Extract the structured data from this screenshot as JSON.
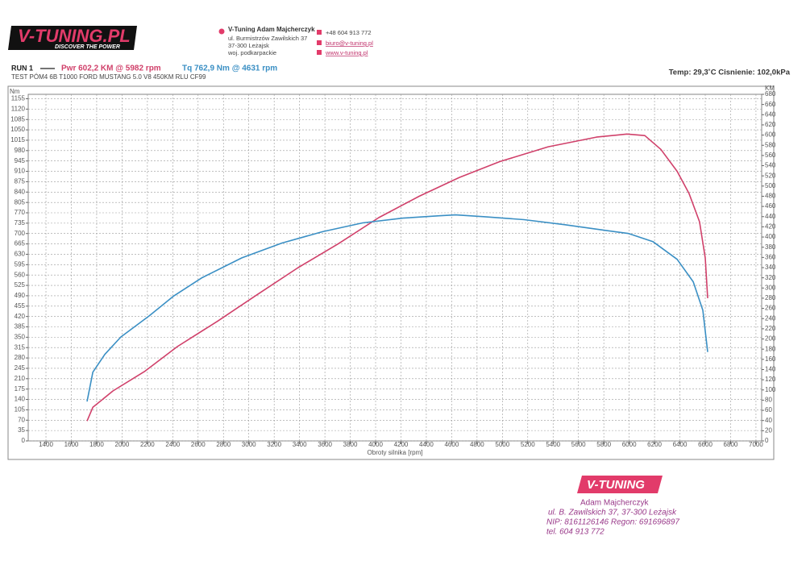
{
  "header": {
    "logo": "V-TUNING.PL",
    "slogan": "DISCOVER THE POWER",
    "address": [
      "V-Tuning Adam Majcherczyk",
      "ul. Burmistrzów Zawilskich 37",
      "37-300 Leżajsk",
      "woj. podkarpackie"
    ],
    "contact": [
      "+48 604 913 772",
      "biuro@v-tuning.pl",
      "www.v-tuning.pl"
    ]
  },
  "chart_data": {
    "type": "line",
    "run": "RUN 1",
    "subtitle": "TEST PÓM4 6B T1000 FORD MUSTANG 5.0 V8 450KM RLU CF99",
    "conditions": "Temp: 29,3˚C  Cisnienie: 102,0kPa",
    "y_label": "Nm",
    "y2_label": "KM",
    "x_label": "Obroty silnika [rpm]",
    "xlim": [
      1260,
      7045
    ],
    "xticks": [
      1400,
      1600,
      1800,
      2000,
      2200,
      2400,
      2600,
      2800,
      3000,
      3200,
      3400,
      3600,
      3800,
      4000,
      4200,
      4400,
      4600,
      4800,
      5000,
      5200,
      5400,
      5600,
      5800,
      6000,
      6200,
      6400,
      6600,
      6800,
      7000
    ],
    "ylim": [
      0,
      1170
    ],
    "yticks": [
      0,
      35,
      70,
      105,
      140,
      175,
      210,
      245,
      280,
      315,
      350,
      385,
      420,
      455,
      490,
      525,
      560,
      595,
      630,
      665,
      700,
      735,
      770,
      805,
      840,
      875,
      910,
      945,
      980,
      1015,
      1050,
      1085,
      1120,
      1155
    ],
    "y2lim": [
      0,
      680
    ],
    "y2ticks": [
      0,
      20,
      40,
      60,
      80,
      100,
      120,
      140,
      160,
      180,
      200,
      220,
      240,
      260,
      280,
      300,
      320,
      340,
      360,
      380,
      400,
      420,
      440,
      460,
      480,
      500,
      520,
      540,
      560,
      580,
      600,
      620,
      640,
      660,
      680
    ],
    "grid": true,
    "series": [
      {
        "name": "Pwr 602,2 KM @ 5982 rpm",
        "color": "#d0406a",
        "axis": "y2",
        "x": [
          1724,
          1770,
          1928,
          2182,
          2436,
          2754,
          3072,
          3389,
          3707,
          4025,
          4343,
          4661,
          4979,
          5361,
          5742,
          5982,
          6123,
          6250,
          6378,
          6473,
          6555,
          6600,
          6619
        ],
        "values": [
          39,
          66,
          98,
          137,
          185,
          235,
          288,
          340,
          387,
          438,
          480,
          517,
          548,
          577,
          596,
          602,
          599,
          572,
          529,
          485,
          430,
          359,
          280
        ]
      },
      {
        "name": "Tq 762,9 Nm @ 4631 rpm",
        "color": "#3a8fc4",
        "axis": "y",
        "x": [
          1724,
          1770,
          1864,
          1991,
          2214,
          2404,
          2627,
          2945,
          3262,
          3580,
          3898,
          4216,
          4502,
          4631,
          4852,
          5170,
          5488,
          5806,
          5996,
          6187,
          6378,
          6505,
          6581,
          6619
        ],
        "values": [
          133,
          232,
          292,
          351,
          422,
          488,
          550,
          618,
          668,
          706,
          736,
          752,
          760,
          763,
          757,
          747,
          730,
          711,
          700,
          673,
          613,
          537,
          441,
          300
        ]
      }
    ]
  },
  "stamp": {
    "logo": "V-TUNING",
    "lines": [
      "Adam Majcherczyk",
      "ul. B. Zawilskich 37, 37-300 Leżajsk",
      "NIP: 8161126146 Regon: 691696897",
      "tel. 604 913 772"
    ]
  }
}
